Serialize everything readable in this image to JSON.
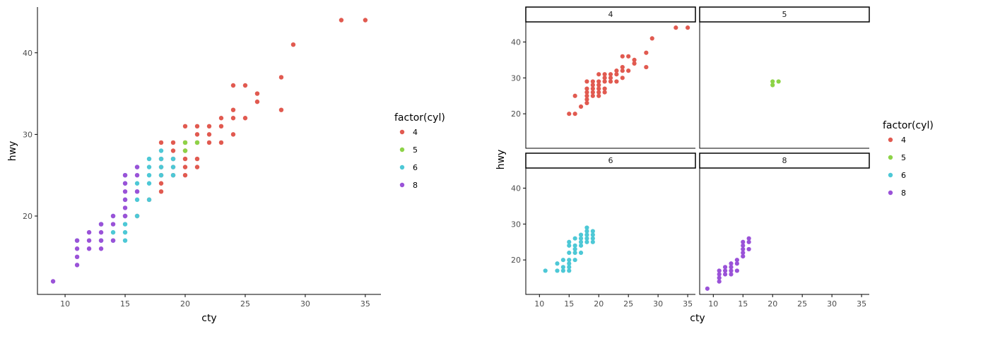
{
  "chart_data": [
    {
      "type": "scatter",
      "xlabel": "cty",
      "ylabel": "hwy",
      "xlim": [
        7.7,
        36.3
      ],
      "ylim": [
        10.4,
        45.6
      ],
      "xticks": [
        10,
        15,
        20,
        25,
        30,
        35
      ],
      "yticks": [
        20,
        30,
        40
      ],
      "grid": false,
      "legend": {
        "title": "factor(cyl)",
        "position": "right",
        "entries": [
          {
            "label": "4",
            "color": "#e15a50"
          },
          {
            "label": "5",
            "color": "#8dd347"
          },
          {
            "label": "6",
            "color": "#4dc8d6"
          },
          {
            "label": "8",
            "color": "#9a52d8"
          }
        ]
      },
      "series": [
        {
          "name": "4",
          "color": "#e15a50",
          "points": [
            [
              35,
              44
            ],
            [
              33,
              44
            ],
            [
              29,
              41
            ],
            [
              28,
              37
            ],
            [
              28,
              33
            ],
            [
              26,
              35
            ],
            [
              26,
              34
            ],
            [
              25,
              36
            ],
            [
              25,
              32
            ],
            [
              24,
              36
            ],
            [
              24,
              33
            ],
            [
              24,
              32
            ],
            [
              24,
              30
            ],
            [
              23,
              32
            ],
            [
              23,
              31
            ],
            [
              23,
              29
            ],
            [
              22,
              31
            ],
            [
              22,
              30
            ],
            [
              22,
              29
            ],
            [
              21,
              31
            ],
            [
              21,
              30
            ],
            [
              21,
              29
            ],
            [
              21,
              27
            ],
            [
              21,
              26
            ],
            [
              20,
              31
            ],
            [
              20,
              29
            ],
            [
              20,
              28
            ],
            [
              20,
              27
            ],
            [
              20,
              26
            ],
            [
              20,
              25
            ],
            [
              19,
              29
            ],
            [
              19,
              28
            ],
            [
              19,
              27
            ],
            [
              19,
              26
            ],
            [
              19,
              25
            ],
            [
              18,
              29
            ],
            [
              18,
              27
            ],
            [
              18,
              26
            ],
            [
              18,
              25
            ],
            [
              18,
              24
            ],
            [
              18,
              23
            ],
            [
              17,
              22
            ],
            [
              16,
              20
            ],
            [
              15,
              20
            ]
          ]
        },
        {
          "name": "5",
          "color": "#8dd347",
          "points": [
            [
              20,
              29
            ],
            [
              20,
              28
            ],
            [
              21,
              29
            ]
          ]
        },
        {
          "name": "6",
          "color": "#4dc8d6",
          "points": [
            [
              11,
              17
            ],
            [
              13,
              17
            ],
            [
              13,
              19
            ],
            [
              14,
              17
            ],
            [
              14,
              18
            ],
            [
              14,
              20
            ],
            [
              15,
              17
            ],
            [
              15,
              18
            ],
            [
              15,
              19
            ],
            [
              15,
              20
            ],
            [
              15,
              22
            ],
            [
              16,
              20
            ],
            [
              16,
              22
            ],
            [
              16,
              23
            ],
            [
              16,
              24
            ],
            [
              16,
              26
            ],
            [
              17,
              22
            ],
            [
              17,
              24
            ],
            [
              17,
              25
            ],
            [
              17,
              26
            ],
            [
              17,
              27
            ],
            [
              18,
              25
            ],
            [
              18,
              26
            ],
            [
              18,
              27
            ],
            [
              18,
              28
            ],
            [
              19,
              25
            ],
            [
              19,
              26
            ],
            [
              19,
              27
            ],
            [
              15,
              24
            ],
            [
              15,
              25
            ]
          ]
        },
        {
          "name": "8",
          "color": "#9a52d8",
          "points": [
            [
              9,
              12
            ],
            [
              11,
              14
            ],
            [
              11,
              15
            ],
            [
              11,
              16
            ],
            [
              11,
              17
            ],
            [
              12,
              16
            ],
            [
              12,
              17
            ],
            [
              12,
              18
            ],
            [
              13,
              16
            ],
            [
              13,
              17
            ],
            [
              13,
              18
            ],
            [
              13,
              19
            ],
            [
              14,
              17
            ],
            [
              14,
              19
            ],
            [
              14,
              20
            ],
            [
              15,
              20
            ],
            [
              15,
              21
            ],
            [
              15,
              22
            ],
            [
              15,
              23
            ],
            [
              15,
              24
            ],
            [
              15,
              25
            ],
            [
              16,
              23
            ],
            [
              16,
              25
            ],
            [
              16,
              26
            ]
          ]
        }
      ]
    },
    {
      "type": "scatter",
      "facet": "cyl",
      "xlabel": "cty",
      "ylabel": "hwy",
      "xlim": [
        7.7,
        36.3
      ],
      "ylim": [
        10.4,
        45.6
      ],
      "xticks": [
        10,
        15,
        20,
        25,
        30,
        35
      ],
      "yticks": [
        20,
        30,
        40
      ],
      "grid": false,
      "legend": {
        "title": "factor(cyl)",
        "position": "right",
        "entries": [
          {
            "label": "4",
            "color": "#e15a50"
          },
          {
            "label": "5",
            "color": "#8dd347"
          },
          {
            "label": "6",
            "color": "#4dc8d6"
          },
          {
            "label": "8",
            "color": "#9a52d8"
          }
        ]
      },
      "panels": [
        {
          "strip": "4",
          "color": "#e15a50",
          "points": [
            [
              35,
              44
            ],
            [
              33,
              44
            ],
            [
              29,
              41
            ],
            [
              28,
              37
            ],
            [
              28,
              33
            ],
            [
              26,
              35
            ],
            [
              26,
              34
            ],
            [
              25,
              36
            ],
            [
              25,
              32
            ],
            [
              24,
              36
            ],
            [
              24,
              33
            ],
            [
              24,
              32
            ],
            [
              24,
              30
            ],
            [
              23,
              32
            ],
            [
              23,
              31
            ],
            [
              23,
              29
            ],
            [
              22,
              31
            ],
            [
              22,
              30
            ],
            [
              22,
              29
            ],
            [
              21,
              31
            ],
            [
              21,
              30
            ],
            [
              21,
              29
            ],
            [
              21,
              27
            ],
            [
              21,
              26
            ],
            [
              20,
              31
            ],
            [
              20,
              29
            ],
            [
              20,
              28
            ],
            [
              20,
              27
            ],
            [
              20,
              26
            ],
            [
              20,
              25
            ],
            [
              19,
              29
            ],
            [
              19,
              28
            ],
            [
              19,
              27
            ],
            [
              19,
              26
            ],
            [
              19,
              25
            ],
            [
              18,
              29
            ],
            [
              18,
              27
            ],
            [
              18,
              26
            ],
            [
              18,
              25
            ],
            [
              18,
              24
            ],
            [
              18,
              23
            ],
            [
              17,
              22
            ],
            [
              16,
              25
            ],
            [
              16,
              20
            ],
            [
              15,
              20
            ]
          ]
        },
        {
          "strip": "5",
          "color": "#8dd347",
          "points": [
            [
              20,
              29
            ],
            [
              20,
              28
            ],
            [
              21,
              29
            ]
          ]
        },
        {
          "strip": "6",
          "color": "#4dc8d6",
          "points": [
            [
              11,
              17
            ],
            [
              13,
              17
            ],
            [
              13,
              19
            ],
            [
              14,
              17
            ],
            [
              14,
              18
            ],
            [
              14,
              20
            ],
            [
              15,
              17
            ],
            [
              15,
              18
            ],
            [
              15,
              19
            ],
            [
              15,
              20
            ],
            [
              15,
              22
            ],
            [
              15,
              24
            ],
            [
              15,
              25
            ],
            [
              16,
              20
            ],
            [
              16,
              22
            ],
            [
              16,
              23
            ],
            [
              16,
              24
            ],
            [
              16,
              26
            ],
            [
              17,
              22
            ],
            [
              17,
              24
            ],
            [
              17,
              25
            ],
            [
              17,
              26
            ],
            [
              17,
              27
            ],
            [
              18,
              25
            ],
            [
              18,
              26
            ],
            [
              18,
              27
            ],
            [
              18,
              28
            ],
            [
              18,
              29
            ],
            [
              19,
              25
            ],
            [
              19,
              26
            ],
            [
              19,
              27
            ],
            [
              19,
              28
            ]
          ]
        },
        {
          "strip": "8",
          "color": "#9a52d8",
          "points": [
            [
              9,
              12
            ],
            [
              11,
              14
            ],
            [
              11,
              15
            ],
            [
              11,
              16
            ],
            [
              11,
              17
            ],
            [
              12,
              16
            ],
            [
              12,
              17
            ],
            [
              12,
              18
            ],
            [
              13,
              16
            ],
            [
              13,
              17
            ],
            [
              13,
              18
            ],
            [
              13,
              19
            ],
            [
              14,
              17
            ],
            [
              14,
              19
            ],
            [
              14,
              20
            ],
            [
              15,
              21
            ],
            [
              15,
              22
            ],
            [
              15,
              23
            ],
            [
              15,
              24
            ],
            [
              15,
              25
            ],
            [
              16,
              23
            ],
            [
              16,
              25
            ],
            [
              16,
              26
            ]
          ]
        }
      ]
    }
  ]
}
